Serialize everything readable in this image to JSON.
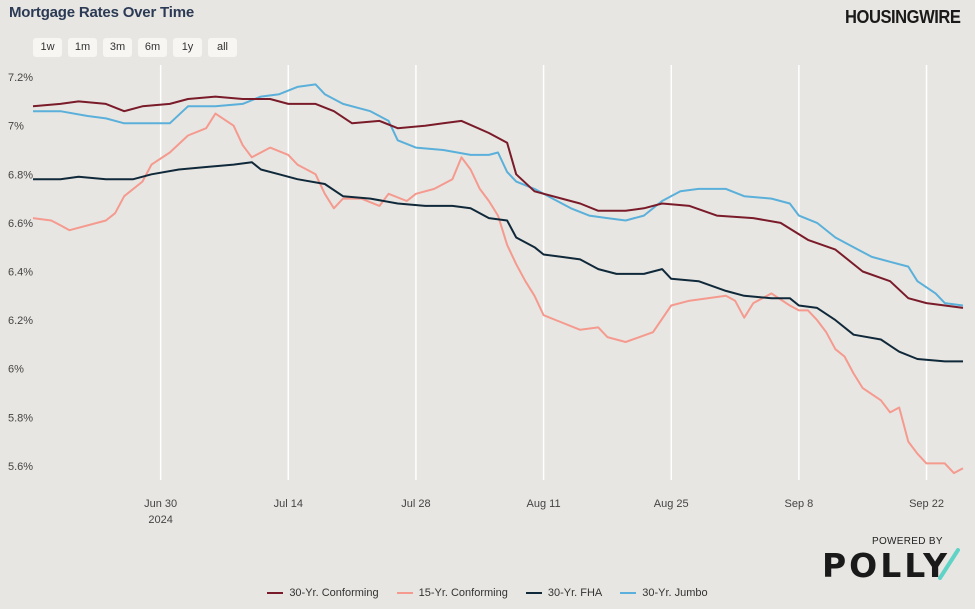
{
  "header": {
    "title": "Mortgage Rates Over Time",
    "brand": "HOUSINGWIRE"
  },
  "range_buttons": [
    "1w",
    "1m",
    "3m",
    "6m",
    "1y",
    "all"
  ],
  "footer": {
    "powered_by": "POWERED BY",
    "logo_text": "POLLY"
  },
  "colors": {
    "background": "#e8e6e2",
    "conforming30": "#7a1b2a",
    "conforming15": "#f59a8f",
    "fha30": "#10293a",
    "jumbo30": "#5ab0da"
  },
  "chart_data": {
    "type": "line",
    "title": "Mortgage Rates Over Time",
    "xlabel": "",
    "ylabel": "",
    "ylim": [
      5.55,
      7.25
    ],
    "yticks": [
      5.6,
      5.8,
      6.0,
      6.2,
      6.4,
      6.6,
      6.8,
      7.0,
      7.2
    ],
    "ytick_labels": [
      "5.6%",
      "5.8%",
      "6%",
      "6.2%",
      "6.4%",
      "6.6%",
      "6.8%",
      "7%",
      "7.2%"
    ],
    "xlim": [
      "2024-06-16",
      "2024-09-26"
    ],
    "xticks": [
      "2024-06-30",
      "2024-07-14",
      "2024-07-28",
      "2024-08-11",
      "2024-08-25",
      "2024-09-08",
      "2024-09-22"
    ],
    "xtick_labels": [
      "Jun 30",
      "Jul 14",
      "Jul 28",
      "Aug 11",
      "Aug 25",
      "Sep 8",
      "Sep 22"
    ],
    "xtick_sublabel": "2024",
    "grid": "vertical",
    "legend": "bottom",
    "series": [
      {
        "name": "30-Yr. Conforming",
        "color": "#7a1b2a",
        "points": [
          [
            "2024-06-16",
            7.08
          ],
          [
            "2024-06-19",
            7.09
          ],
          [
            "2024-06-21",
            7.1
          ],
          [
            "2024-06-24",
            7.09
          ],
          [
            "2024-06-26",
            7.06
          ],
          [
            "2024-06-28",
            7.08
          ],
          [
            "2024-07-01",
            7.09
          ],
          [
            "2024-07-03",
            7.11
          ],
          [
            "2024-07-06",
            7.12
          ],
          [
            "2024-07-09",
            7.11
          ],
          [
            "2024-07-12",
            7.11
          ],
          [
            "2024-07-14",
            7.09
          ],
          [
            "2024-07-17",
            7.09
          ],
          [
            "2024-07-19",
            7.06
          ],
          [
            "2024-07-21",
            7.01
          ],
          [
            "2024-07-24",
            7.02
          ],
          [
            "2024-07-26",
            6.99
          ],
          [
            "2024-07-29",
            7.0
          ],
          [
            "2024-07-31",
            7.01
          ],
          [
            "2024-08-02",
            7.02
          ],
          [
            "2024-08-05",
            6.97
          ],
          [
            "2024-08-07",
            6.93
          ],
          [
            "2024-08-08",
            6.8
          ],
          [
            "2024-08-10",
            6.73
          ],
          [
            "2024-08-13",
            6.7
          ],
          [
            "2024-08-15",
            6.68
          ],
          [
            "2024-08-17",
            6.65
          ],
          [
            "2024-08-20",
            6.65
          ],
          [
            "2024-08-22",
            6.66
          ],
          [
            "2024-08-24",
            6.68
          ],
          [
            "2024-08-27",
            6.67
          ],
          [
            "2024-08-30",
            6.63
          ],
          [
            "2024-09-03",
            6.62
          ],
          [
            "2024-09-06",
            6.6
          ],
          [
            "2024-09-09",
            6.53
          ],
          [
            "2024-09-12",
            6.49
          ],
          [
            "2024-09-15",
            6.4
          ],
          [
            "2024-09-18",
            6.36
          ],
          [
            "2024-09-20",
            6.29
          ],
          [
            "2024-09-22",
            6.27
          ],
          [
            "2024-09-24",
            6.26
          ],
          [
            "2024-09-26",
            6.25
          ]
        ]
      },
      {
        "name": "15-Yr. Conforming",
        "color": "#f59a8f",
        "points": [
          [
            "2024-06-16",
            6.62
          ],
          [
            "2024-06-18",
            6.61
          ],
          [
            "2024-06-19",
            6.59
          ],
          [
            "2024-06-20",
            6.57
          ],
          [
            "2024-06-24",
            6.61
          ],
          [
            "2024-06-25",
            6.64
          ],
          [
            "2024-06-26",
            6.71
          ],
          [
            "2024-06-28",
            6.77
          ],
          [
            "2024-06-29",
            6.84
          ],
          [
            "2024-07-01",
            6.89
          ],
          [
            "2024-07-03",
            6.96
          ],
          [
            "2024-07-05",
            6.99
          ],
          [
            "2024-07-06",
            7.05
          ],
          [
            "2024-07-08",
            7.0
          ],
          [
            "2024-07-09",
            6.92
          ],
          [
            "2024-07-10",
            6.87
          ],
          [
            "2024-07-12",
            6.91
          ],
          [
            "2024-07-14",
            6.88
          ],
          [
            "2024-07-15",
            6.84
          ],
          [
            "2024-07-17",
            6.8
          ],
          [
            "2024-07-18",
            6.72
          ],
          [
            "2024-07-19",
            6.66
          ],
          [
            "2024-07-20",
            6.7
          ],
          [
            "2024-07-22",
            6.7
          ],
          [
            "2024-07-24",
            6.67
          ],
          [
            "2024-07-25",
            6.72
          ],
          [
            "2024-07-27",
            6.69
          ],
          [
            "2024-07-28",
            6.72
          ],
          [
            "2024-07-30",
            6.74
          ],
          [
            "2024-08-01",
            6.78
          ],
          [
            "2024-08-02",
            6.87
          ],
          [
            "2024-08-03",
            6.82
          ],
          [
            "2024-08-04",
            6.74
          ],
          [
            "2024-08-05",
            6.69
          ],
          [
            "2024-08-06",
            6.63
          ],
          [
            "2024-08-07",
            6.51
          ],
          [
            "2024-08-08",
            6.43
          ],
          [
            "2024-08-09",
            6.36
          ],
          [
            "2024-08-10",
            6.3
          ],
          [
            "2024-08-11",
            6.22
          ],
          [
            "2024-08-13",
            6.19
          ],
          [
            "2024-08-15",
            6.16
          ],
          [
            "2024-08-17",
            6.17
          ],
          [
            "2024-08-18",
            6.13
          ],
          [
            "2024-08-20",
            6.11
          ],
          [
            "2024-08-23",
            6.15
          ],
          [
            "2024-08-25",
            6.26
          ],
          [
            "2024-08-27",
            6.28
          ],
          [
            "2024-08-29",
            6.29
          ],
          [
            "2024-08-31",
            6.3
          ],
          [
            "2024-09-01",
            6.28
          ],
          [
            "2024-09-02",
            6.21
          ],
          [
            "2024-09-03",
            6.27
          ],
          [
            "2024-09-05",
            6.31
          ],
          [
            "2024-09-07",
            6.26
          ],
          [
            "2024-09-08",
            6.24
          ],
          [
            "2024-09-09",
            6.24
          ],
          [
            "2024-09-10",
            6.2
          ],
          [
            "2024-09-11",
            6.15
          ],
          [
            "2024-09-12",
            6.08
          ],
          [
            "2024-09-13",
            6.05
          ],
          [
            "2024-09-14",
            5.98
          ],
          [
            "2024-09-15",
            5.92
          ],
          [
            "2024-09-17",
            5.87
          ],
          [
            "2024-09-18",
            5.82
          ],
          [
            "2024-09-19",
            5.84
          ],
          [
            "2024-09-20",
            5.7
          ],
          [
            "2024-09-21",
            5.65
          ],
          [
            "2024-09-22",
            5.61
          ],
          [
            "2024-09-24",
            5.61
          ],
          [
            "2024-09-25",
            5.57
          ],
          [
            "2024-09-26",
            5.59
          ]
        ]
      },
      {
        "name": "30-Yr. FHA",
        "color": "#10293a",
        "points": [
          [
            "2024-06-16",
            6.78
          ],
          [
            "2024-06-19",
            6.78
          ],
          [
            "2024-06-21",
            6.79
          ],
          [
            "2024-06-24",
            6.78
          ],
          [
            "2024-06-27",
            6.78
          ],
          [
            "2024-06-29",
            6.8
          ],
          [
            "2024-07-02",
            6.82
          ],
          [
            "2024-07-05",
            6.83
          ],
          [
            "2024-07-08",
            6.84
          ],
          [
            "2024-07-10",
            6.85
          ],
          [
            "2024-07-11",
            6.82
          ],
          [
            "2024-07-13",
            6.8
          ],
          [
            "2024-07-15",
            6.78
          ],
          [
            "2024-07-18",
            6.76
          ],
          [
            "2024-07-20",
            6.71
          ],
          [
            "2024-07-23",
            6.7
          ],
          [
            "2024-07-26",
            6.68
          ],
          [
            "2024-07-29",
            6.67
          ],
          [
            "2024-08-01",
            6.67
          ],
          [
            "2024-08-03",
            6.66
          ],
          [
            "2024-08-05",
            6.62
          ],
          [
            "2024-08-07",
            6.61
          ],
          [
            "2024-08-08",
            6.54
          ],
          [
            "2024-08-10",
            6.5
          ],
          [
            "2024-08-11",
            6.47
          ],
          [
            "2024-08-13",
            6.46
          ],
          [
            "2024-08-15",
            6.45
          ],
          [
            "2024-08-17",
            6.41
          ],
          [
            "2024-08-19",
            6.39
          ],
          [
            "2024-08-22",
            6.39
          ],
          [
            "2024-08-24",
            6.41
          ],
          [
            "2024-08-25",
            6.37
          ],
          [
            "2024-08-28",
            6.36
          ],
          [
            "2024-08-31",
            6.32
          ],
          [
            "2024-09-02",
            6.3
          ],
          [
            "2024-09-05",
            6.29
          ],
          [
            "2024-09-07",
            6.29
          ],
          [
            "2024-09-08",
            6.26
          ],
          [
            "2024-09-10",
            6.25
          ],
          [
            "2024-09-12",
            6.2
          ],
          [
            "2024-09-14",
            6.14
          ],
          [
            "2024-09-17",
            6.12
          ],
          [
            "2024-09-19",
            6.07
          ],
          [
            "2024-09-21",
            6.04
          ],
          [
            "2024-09-24",
            6.03
          ],
          [
            "2024-09-26",
            6.03
          ]
        ]
      },
      {
        "name": "30-Yr. Jumbo",
        "color": "#5ab0da",
        "points": [
          [
            "2024-06-16",
            7.06
          ],
          [
            "2024-06-19",
            7.06
          ],
          [
            "2024-06-22",
            7.04
          ],
          [
            "2024-06-24",
            7.03
          ],
          [
            "2024-06-26",
            7.01
          ],
          [
            "2024-06-29",
            7.01
          ],
          [
            "2024-07-01",
            7.01
          ],
          [
            "2024-07-03",
            7.08
          ],
          [
            "2024-07-06",
            7.08
          ],
          [
            "2024-07-09",
            7.09
          ],
          [
            "2024-07-11",
            7.12
          ],
          [
            "2024-07-13",
            7.13
          ],
          [
            "2024-07-15",
            7.16
          ],
          [
            "2024-07-17",
            7.17
          ],
          [
            "2024-07-18",
            7.13
          ],
          [
            "2024-07-20",
            7.09
          ],
          [
            "2024-07-23",
            7.06
          ],
          [
            "2024-07-25",
            7.02
          ],
          [
            "2024-07-26",
            6.94
          ],
          [
            "2024-07-28",
            6.91
          ],
          [
            "2024-07-31",
            6.9
          ],
          [
            "2024-08-03",
            6.88
          ],
          [
            "2024-08-05",
            6.88
          ],
          [
            "2024-08-06",
            6.89
          ],
          [
            "2024-08-07",
            6.81
          ],
          [
            "2024-08-08",
            6.77
          ],
          [
            "2024-08-10",
            6.74
          ],
          [
            "2024-08-12",
            6.7
          ],
          [
            "2024-08-14",
            6.66
          ],
          [
            "2024-08-16",
            6.63
          ],
          [
            "2024-08-18",
            6.62
          ],
          [
            "2024-08-20",
            6.61
          ],
          [
            "2024-08-22",
            6.63
          ],
          [
            "2024-08-24",
            6.69
          ],
          [
            "2024-08-26",
            6.73
          ],
          [
            "2024-08-28",
            6.74
          ],
          [
            "2024-08-31",
            6.74
          ],
          [
            "2024-09-02",
            6.71
          ],
          [
            "2024-09-05",
            6.7
          ],
          [
            "2024-09-07",
            6.68
          ],
          [
            "2024-09-08",
            6.63
          ],
          [
            "2024-09-10",
            6.6
          ],
          [
            "2024-09-12",
            6.54
          ],
          [
            "2024-09-14",
            6.5
          ],
          [
            "2024-09-16",
            6.46
          ],
          [
            "2024-09-18",
            6.44
          ],
          [
            "2024-09-20",
            6.42
          ],
          [
            "2024-09-21",
            6.36
          ],
          [
            "2024-09-23",
            6.31
          ],
          [
            "2024-09-24",
            6.27
          ],
          [
            "2024-09-26",
            6.26
          ]
        ]
      }
    ]
  }
}
